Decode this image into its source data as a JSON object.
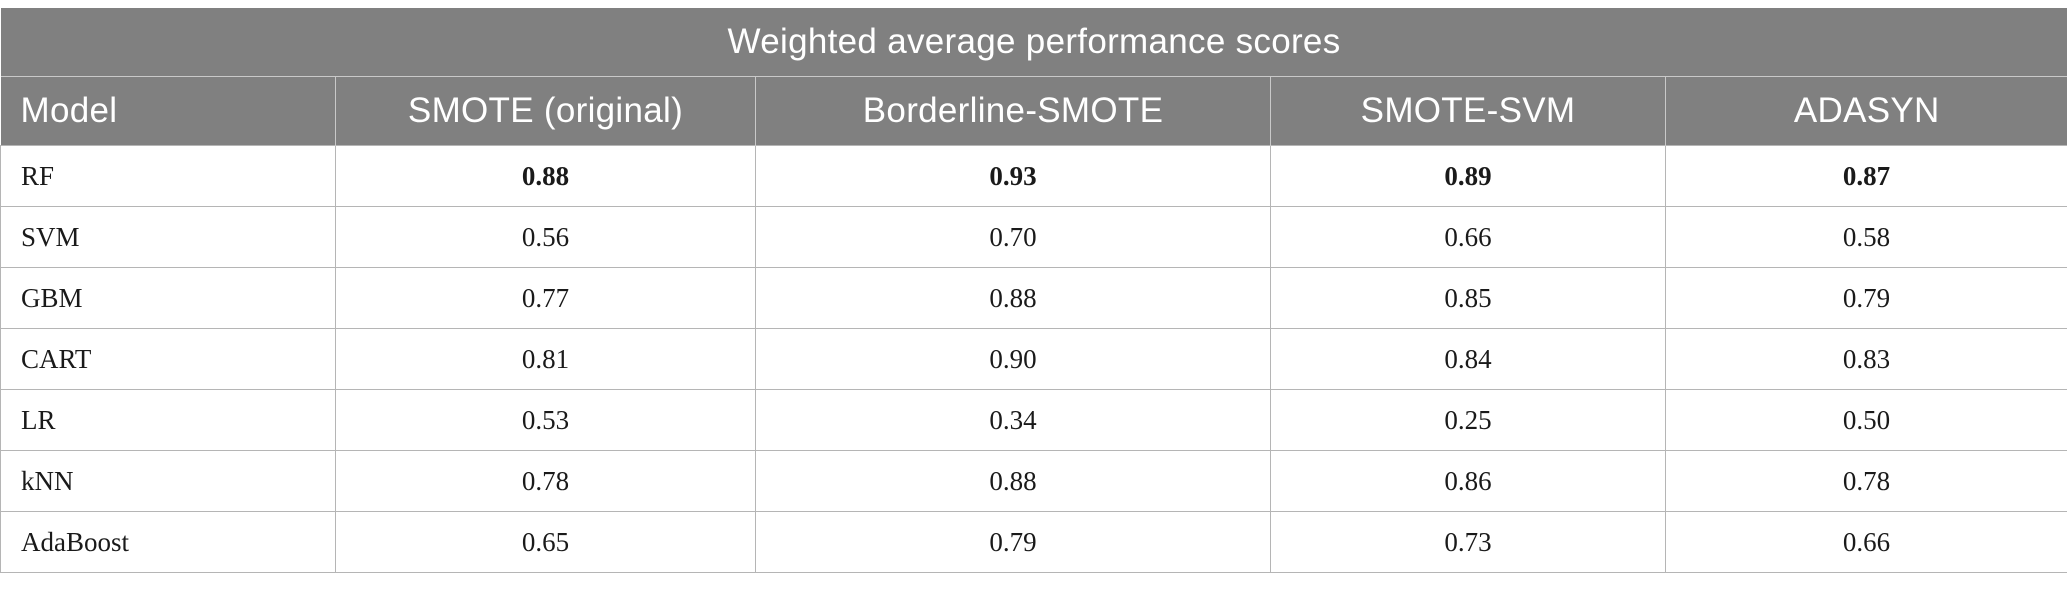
{
  "table": {
    "title": "Weighted average performance scores",
    "columns": [
      "Model",
      "SMOTE (original)",
      "Borderline-SMOTE",
      "SMOTE-SVM",
      "ADASYN"
    ],
    "rows": [
      {
        "model": "RF",
        "values": [
          "0.88",
          "0.93",
          "0.89",
          "0.87"
        ],
        "bold": true
      },
      {
        "model": "SVM",
        "values": [
          "0.56",
          "0.70",
          "0.66",
          "0.58"
        ],
        "bold": false
      },
      {
        "model": "GBM",
        "values": [
          "0.77",
          "0.88",
          "0.85",
          "0.79"
        ],
        "bold": false
      },
      {
        "model": "CART",
        "values": [
          "0.81",
          "0.90",
          "0.84",
          "0.83"
        ],
        "bold": false
      },
      {
        "model": "LR",
        "values": [
          "0.53",
          "0.34",
          "0.25",
          "0.50"
        ],
        "bold": false
      },
      {
        "model": "kNN",
        "values": [
          "0.78",
          "0.88",
          "0.86",
          "0.78"
        ],
        "bold": false
      },
      {
        "model": "AdaBoost",
        "values": [
          "0.65",
          "0.79",
          "0.73",
          "0.66"
        ],
        "bold": false
      }
    ]
  },
  "colors": {
    "header_bg": "#808080",
    "header_text": "#ffffff",
    "grid": "#b5b5b5"
  }
}
